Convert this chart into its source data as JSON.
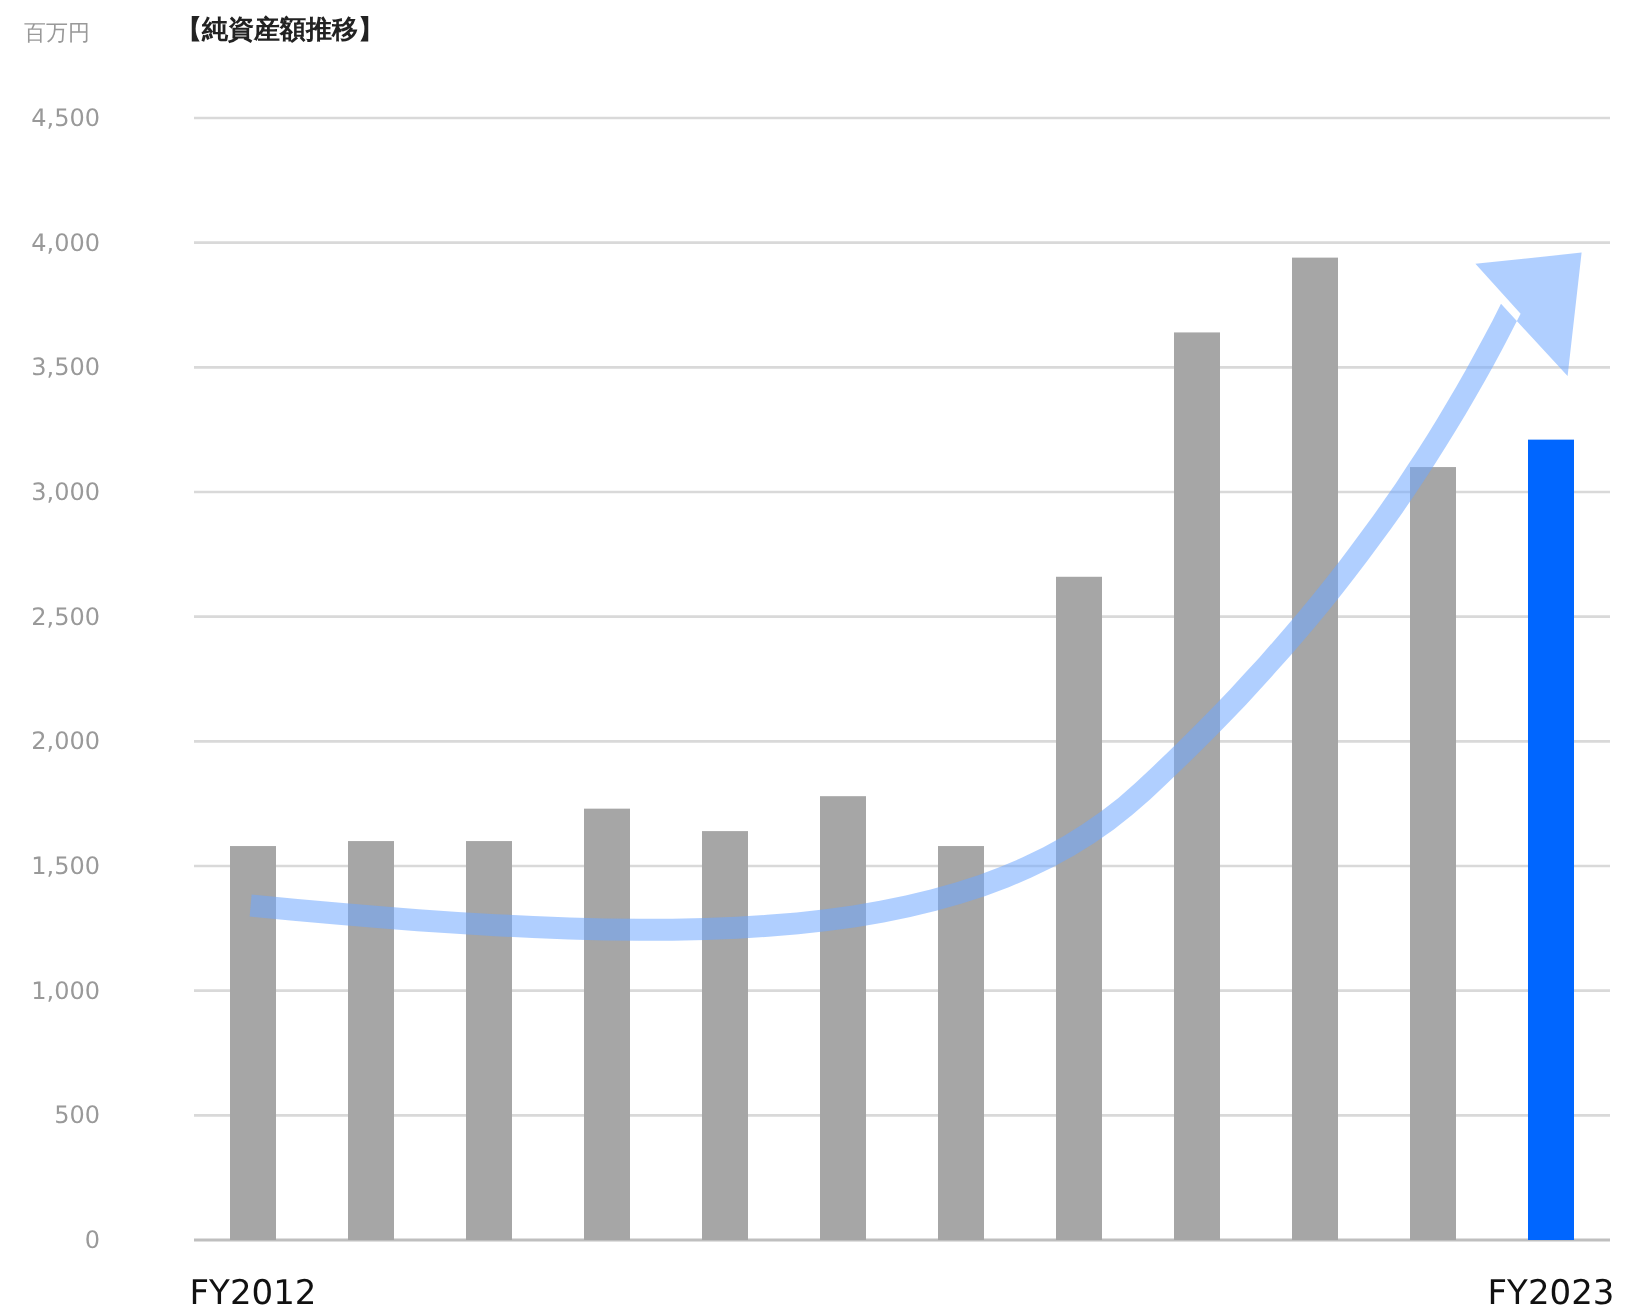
{
  "chart_data": {
    "type": "bar",
    "title": "【純資産額推移】",
    "ylabel": "百万円",
    "categories": [
      "FY2012",
      null,
      null,
      null,
      null,
      null,
      null,
      null,
      null,
      null,
      null,
      "FY2023"
    ],
    "values": [
      1580,
      1600,
      1600,
      1730,
      1640,
      1780,
      1580,
      2660,
      3640,
      3940,
      3100,
      3210
    ],
    "colors": [
      "#a6a6a6",
      "#a6a6a6",
      "#a6a6a6",
      "#a6a6a6",
      "#a6a6a6",
      "#a6a6a6",
      "#a6a6a6",
      "#a6a6a6",
      "#a6a6a6",
      "#a6a6a6",
      "#a6a6a6",
      "#0066ff"
    ],
    "ylim": [
      0,
      4500
    ],
    "yticks": [
      0,
      500,
      {
        "value": 1000,
        "label": "1,000"
      },
      {
        "value": 1500,
        "label": "1,500"
      },
      {
        "value": 2000,
        "label": "2,000"
      },
      {
        "value": 2500,
        "label": "2,500"
      },
      {
        "value": 3000,
        "label": "3,000"
      },
      {
        "value": 3500,
        "label": "3,500"
      },
      {
        "value": 4000,
        "label": "4,000"
      },
      {
        "value": 4500,
        "label": "4,500"
      }
    ],
    "grid": "y"
  }
}
